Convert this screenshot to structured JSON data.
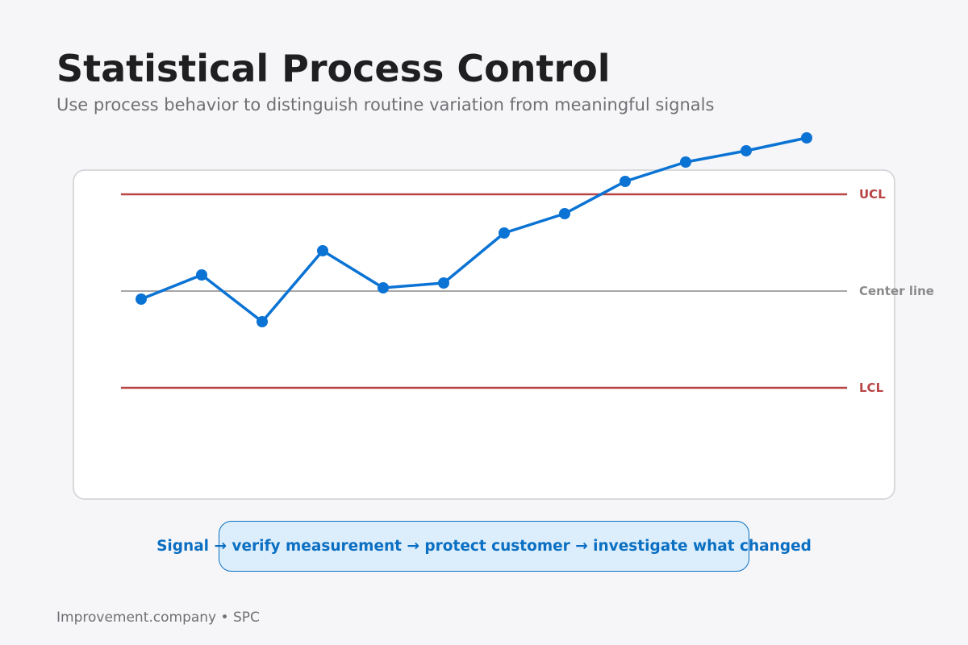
{
  "header": {
    "title": "Statistical Process Control",
    "subtitle": "Use process behavior to distinguish routine variation from meaningful signals"
  },
  "chart_data": {
    "type": "line",
    "x": [
      1,
      2,
      3,
      4,
      5,
      6,
      7,
      8,
      9,
      10,
      11,
      12
    ],
    "series": [
      {
        "values": [
          -0.25,
          0.5,
          -0.95,
          1.25,
          0.1,
          0.25,
          1.8,
          2.4,
          3.4,
          4.0,
          4.35,
          4.75
        ]
      }
    ],
    "control_lines": [
      {
        "label": "UCL",
        "value": 3.0,
        "color": "#b84444"
      },
      {
        "label": "Center line",
        "value": 0.0,
        "color": "#8a8a8a"
      },
      {
        "label": "LCL",
        "value": -3.0,
        "color": "#b84444"
      }
    ],
    "ylim": [
      -5.1,
      4.9
    ],
    "series_color": "#0a73d4",
    "grid": false
  },
  "callout": {
    "text": "Signal → verify measurement → protect customer → investigate what changed"
  },
  "footer": {
    "text": "Improvement.company • SPC"
  }
}
